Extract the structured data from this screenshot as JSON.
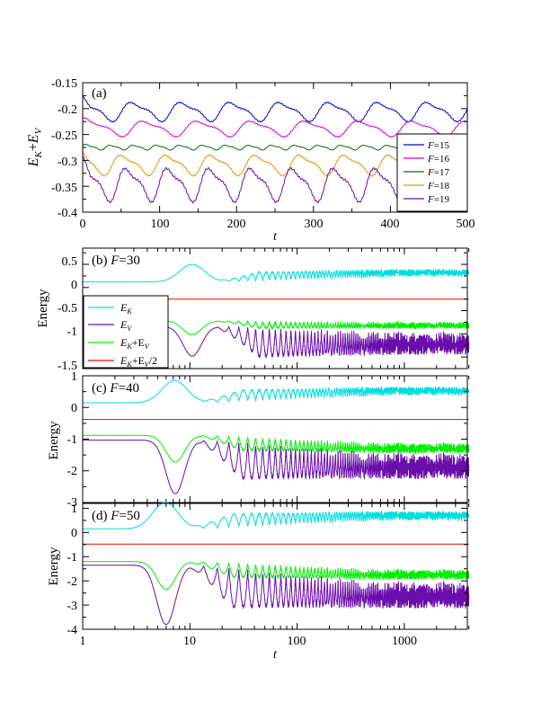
{
  "chart_data": [
    {
      "id": "a",
      "type": "line",
      "panel_label": "(a)",
      "xlabel": "t",
      "ylabel": "E_K+E_V",
      "xlim": [
        0,
        500
      ],
      "ylim": [
        -0.4,
        -0.15
      ],
      "xticks": [
        0,
        100,
        200,
        300,
        400,
        500
      ],
      "yticks": [
        -0.4,
        -0.35,
        -0.3,
        -0.25,
        -0.2,
        -0.15
      ],
      "legend_position": "right",
      "series": [
        {
          "name": "F=15",
          "legend_text": "=15",
          "color": "#0000cc",
          "base": -0.205,
          "amp": 0.016,
          "period": 64,
          "phase": 1.2
        },
        {
          "name": "F=16",
          "legend_text": "=16",
          "color": "#d300d3",
          "base": -0.238,
          "amp": 0.013,
          "period": 70,
          "phase": 0.4
        },
        {
          "name": "F=17",
          "legend_text": "=17",
          "color": "#007000",
          "base": -0.275,
          "amp": 0.004,
          "period": 30,
          "phase": 0.0
        },
        {
          "name": "F=18",
          "legend_text": "=18",
          "color": "#e69400",
          "base": -0.308,
          "amp": 0.017,
          "period": 58,
          "phase": 2.0
        },
        {
          "name": "F=19",
          "legend_text": "=19",
          "color": "#6a0dad",
          "base": -0.345,
          "amp": 0.028,
          "period": 54,
          "phase": 0.9
        }
      ]
    },
    {
      "id": "b",
      "type": "line",
      "panel_label": "(b)",
      "panel_F": "=30",
      "xscale": "log",
      "xlim": [
        1,
        4000
      ],
      "ylim": [
        -1.75,
        0.85
      ],
      "ylabel": "Energy",
      "yticks": [
        0.5,
        0,
        -0.5,
        -1,
        -1.5
      ],
      "ytick_labels": [
        "0.5",
        "0",
        "-0.5",
        "-1",
        "-1.5"
      ],
      "legend_position": "left",
      "series": [
        {
          "name": "E_K",
          "label_main": "E",
          "label_sub": "K",
          "color": "#00dddd"
        },
        {
          "name": "E_V",
          "label_main": "E",
          "label_sub": "V",
          "color": "#6a0dad"
        },
        {
          "name": "E_K+E_V",
          "label_main": "E",
          "label_sub": "K",
          "label_plus": "+E",
          "label_sub2": "V",
          "color": "#00ee00"
        },
        {
          "name": "E_K+E_V/2",
          "label_main": "E",
          "label_sub": "K",
          "label_plus": "+E",
          "label_sub2": "V",
          "label_tail": "/2",
          "color": "#dd1100"
        }
      ],
      "curves": {
        "ek0": 0.12,
        "ek_peak": 0.5,
        "ek_end": 0.28,
        "ek_osc": 0.04,
        "sum0": -0.72,
        "sum_dip": -1.02,
        "sum_end": -0.78,
        "sum_osc": 0.04,
        "ev_dip": -1.48,
        "ev_end": -1.06,
        "ev_osc": 0.1,
        "flat": -0.25,
        "tpk": 10.5,
        "tdip": 10.5
      }
    },
    {
      "id": "c",
      "type": "line",
      "panel_label": "(c)",
      "panel_F": "=40",
      "xscale": "log",
      "xlim": [
        1,
        4000
      ],
      "ylim": [
        -3.0,
        1.0
      ],
      "ylabel": "Energy",
      "yticks": [
        1,
        0,
        -1,
        -2,
        -3
      ],
      "ytick_labels": [
        "1",
        "0",
        "-1",
        "-2",
        "-3"
      ],
      "curves": {
        "ek0": 0.15,
        "ek_peak": 0.85,
        "ek_end": 0.45,
        "ek_osc": 0.06,
        "sum0": -0.88,
        "sum_dip": -1.72,
        "sum_end": -1.2,
        "sum_osc": 0.07,
        "ev_dip": -2.72,
        "ev_end": -1.6,
        "ev_osc": 0.15,
        "flat": -0.38,
        "tpk": 7.2,
        "tdip": 7.3
      }
    },
    {
      "id": "d",
      "type": "line",
      "panel_label": "(d)",
      "panel_F": "=50",
      "xscale": "log",
      "xlim": [
        1,
        4000
      ],
      "ylim": [
        -4.0,
        1.2
      ],
      "ylabel": "Energy",
      "xlabel": "t",
      "xticks": [
        1,
        10,
        100,
        1000
      ],
      "yticks": [
        1,
        0,
        -1,
        -2,
        -3,
        -4
      ],
      "ytick_labels": [
        "1",
        "0",
        "-1",
        "-2",
        "-3",
        "-4"
      ],
      "curves": {
        "ek0": 0.15,
        "ek_peak": 1.25,
        "ek_end": 0.58,
        "ek_osc": 0.07,
        "sum0": -1.2,
        "sum_dip": -2.35,
        "sum_end": -1.62,
        "sum_osc": 0.08,
        "ev_dip": -3.8,
        "ev_end": -2.25,
        "ev_osc": 0.18,
        "flat": -0.48,
        "tpk": 5.9,
        "tdip": 6.0
      }
    }
  ]
}
